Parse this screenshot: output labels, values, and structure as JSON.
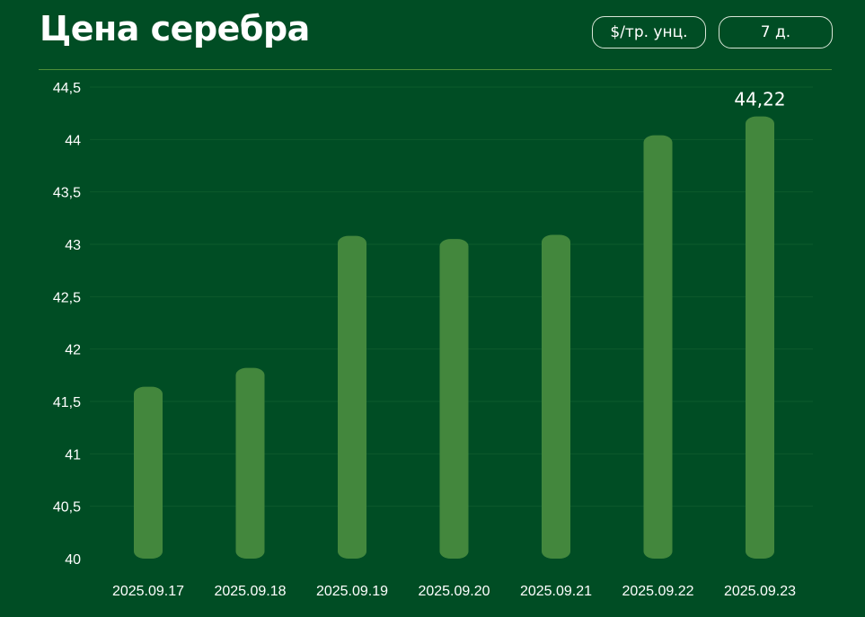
{
  "header": {
    "title": "Цена серебра",
    "unit_button": "$/тр. унц.",
    "period_button": "7 д."
  },
  "colors": {
    "background": "#004d24",
    "bar": "#43873d",
    "grid": "#0d5a2c"
  },
  "chart_data": {
    "type": "bar",
    "categories": [
      "2025.09.17",
      "2025.09.18",
      "2025.09.19",
      "2025.09.20",
      "2025.09.21",
      "2025.09.22",
      "2025.09.23"
    ],
    "values": [
      41.64,
      41.82,
      43.08,
      43.05,
      43.09,
      44.04,
      44.22
    ],
    "data_labels": [
      {
        "index": 6,
        "text": "44,22"
      }
    ],
    "ylim": [
      40,
      44.5
    ],
    "yticks": [
      "40",
      "40,5",
      "41",
      "41,5",
      "42",
      "42,5",
      "43",
      "43,5",
      "44",
      "44,5"
    ],
    "grid": true
  }
}
